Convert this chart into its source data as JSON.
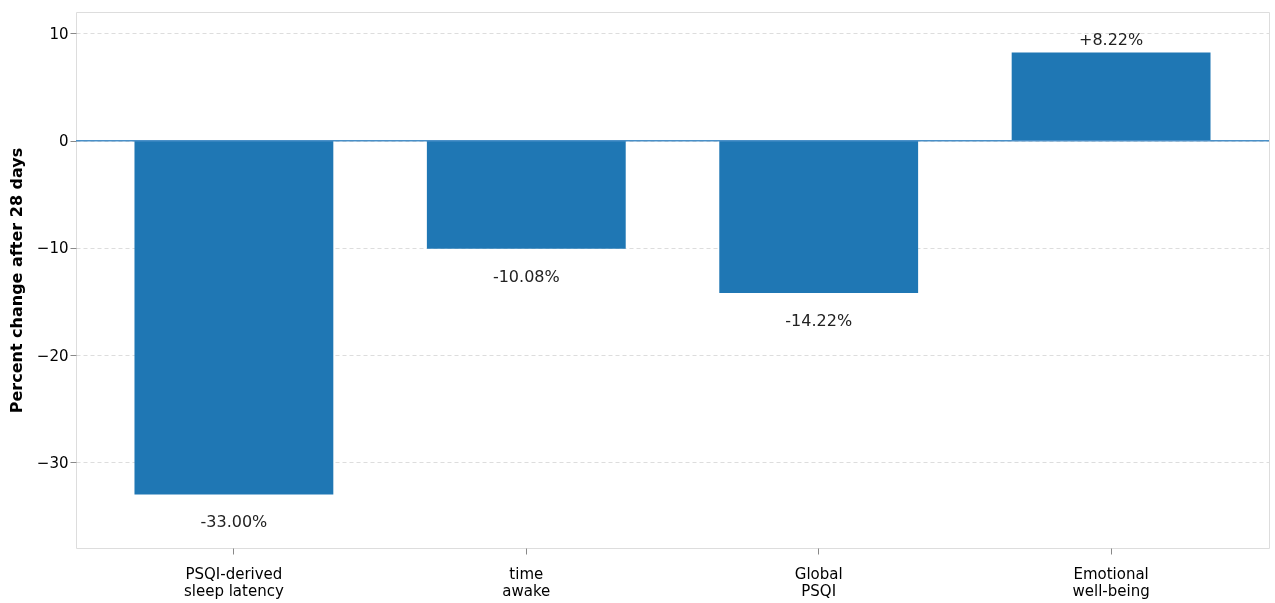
{
  "chart_data": {
    "type": "bar",
    "ylabel": "Percent change after 28 days",
    "categories": [
      "PSQI-derived sleep latency",
      "time awake",
      "Global PSQI",
      "Emotional well-being"
    ],
    "values": [
      -33.0,
      -10.08,
      -14.22,
      8.22
    ],
    "value_labels": [
      "-33.00%",
      "-10.08%",
      "-14.22%",
      "+8.22%"
    ],
    "color": "#1f77b4",
    "ylim": [
      -38,
      12
    ],
    "yticks": [
      -30,
      -20,
      -10,
      0,
      10
    ],
    "ref_lines": [
      {
        "axis": "y",
        "value": 0,
        "color": "#4a90c8",
        "line_style": "solid"
      }
    ],
    "grid": "y"
  }
}
